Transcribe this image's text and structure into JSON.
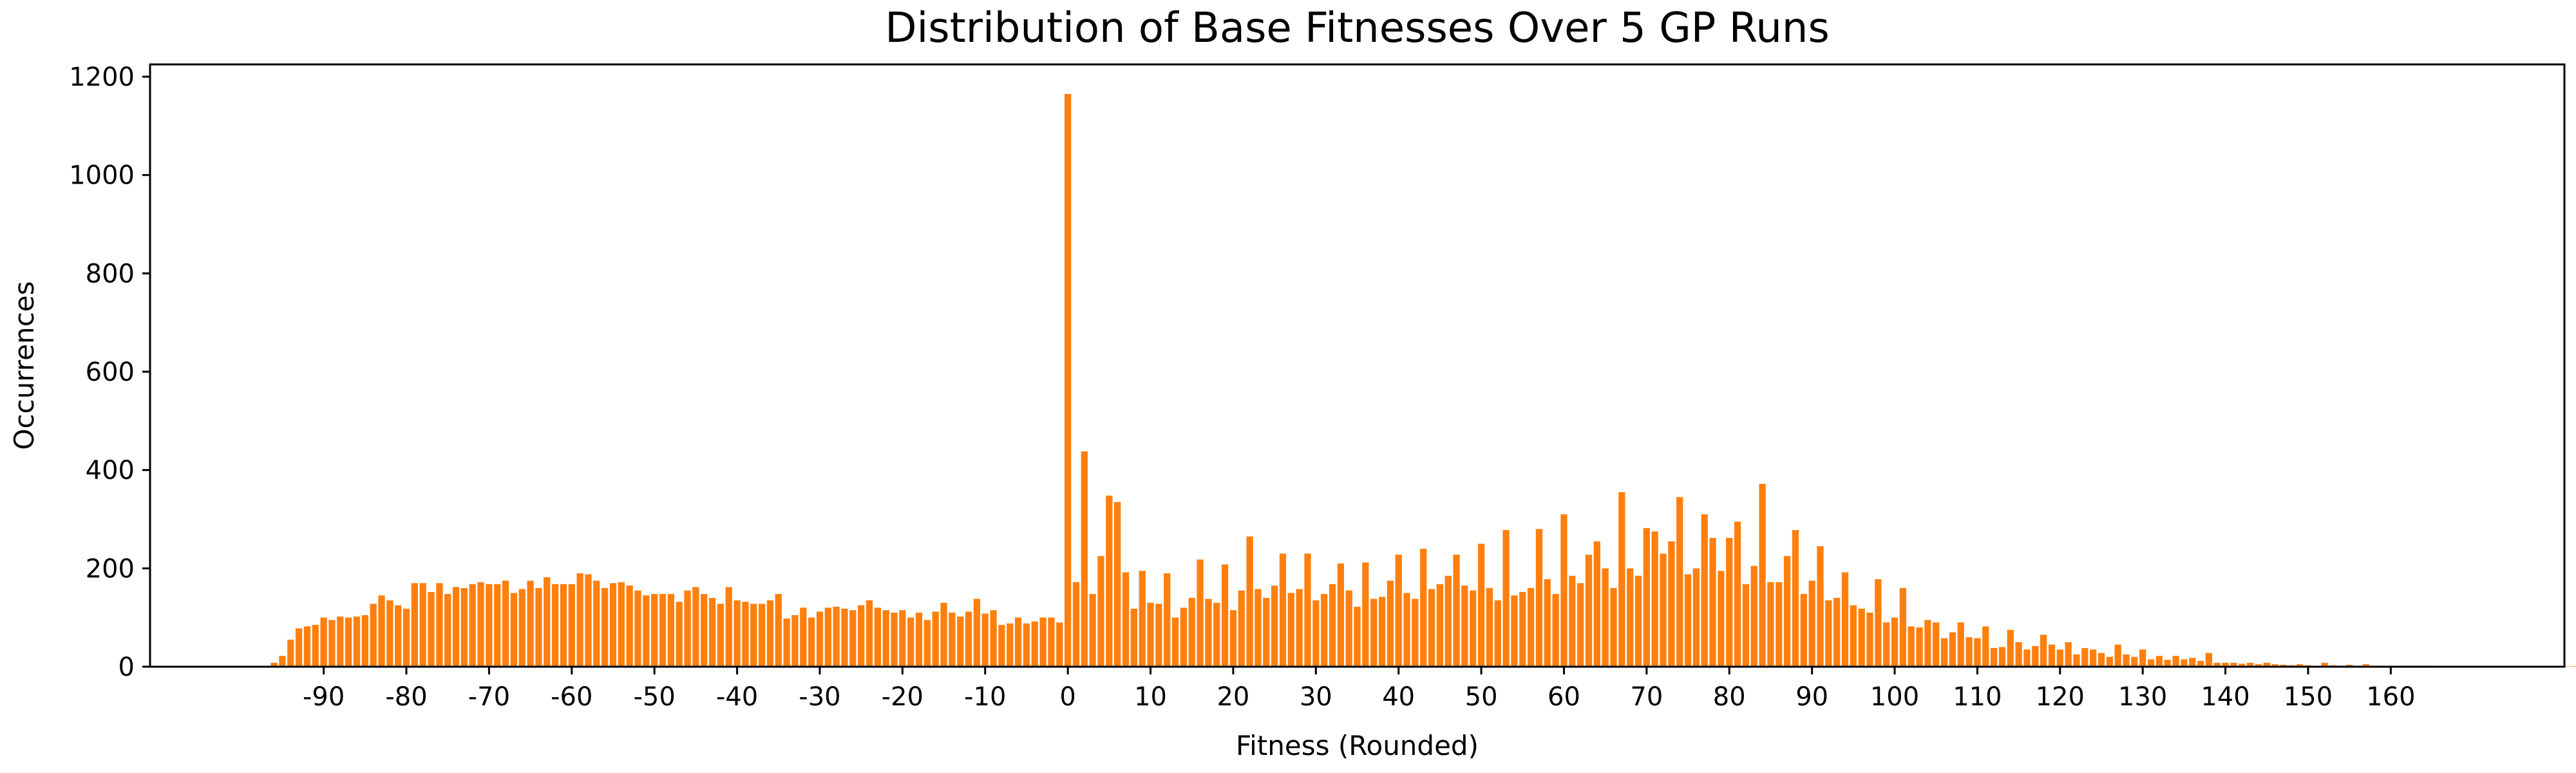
{
  "chart_data": {
    "type": "bar",
    "title": "Distribution of Base Fitnesses Over 5 GP Runs",
    "xlabel": "Fitness (Rounded)",
    "ylabel": "Occurrences",
    "color": "#ff7f0e",
    "grid": false,
    "legend": "none",
    "xlim": [
      -111,
      181
    ],
    "ylim": [
      0,
      1225
    ],
    "xticks": [
      -90,
      -80,
      -70,
      -60,
      -50,
      -40,
      -30,
      -20,
      -10,
      0,
      10,
      20,
      30,
      40,
      50,
      60,
      70,
      80,
      90,
      100,
      110,
      120,
      130,
      140,
      150,
      160
    ],
    "xtick_labels": [
      "-90",
      "-80",
      "-70",
      "-60",
      "-50",
      "-40",
      "-30",
      "-20",
      "-10",
      "0",
      "10",
      "20",
      "30",
      "40",
      "50",
      "60",
      "70",
      "80",
      "90",
      "100",
      "110",
      "120",
      "130",
      "140",
      "150",
      "160"
    ],
    "yticks": [
      0,
      200,
      400,
      600,
      800,
      1000,
      1200
    ],
    "ytick_labels": [
      "0",
      "200",
      "400",
      "600",
      "800",
      "1000",
      "1200"
    ],
    "x_start": -96,
    "values": [
      8,
      22,
      55,
      78,
      82,
      85,
      100,
      95,
      102,
      100,
      102,
      105,
      128,
      145,
      135,
      125,
      118,
      170,
      170,
      152,
      170,
      148,
      162,
      160,
      168,
      172,
      168,
      168,
      175,
      150,
      158,
      175,
      160,
      182,
      168,
      168,
      168,
      190,
      188,
      175,
      160,
      170,
      172,
      165,
      155,
      145,
      148,
      148,
      148,
      132,
      155,
      162,
      148,
      140,
      128,
      162,
      135,
      132,
      128,
      128,
      135,
      148,
      98,
      105,
      120,
      100,
      112,
      120,
      122,
      118,
      115,
      125,
      135,
      120,
      115,
      110,
      115,
      100,
      110,
      95,
      112,
      130,
      110,
      102,
      112,
      138,
      108,
      115,
      85,
      88,
      100,
      88,
      92,
      100,
      100,
      90,
      1165,
      172,
      438,
      148,
      225,
      348,
      335,
      192,
      118,
      195,
      130,
      128,
      190,
      100,
      120,
      140,
      218,
      138,
      130,
      208,
      115,
      155,
      265,
      158,
      140,
      165,
      230,
      150,
      158,
      230,
      135,
      148,
      168,
      210,
      155,
      122,
      212,
      138,
      142,
      175,
      228,
      150,
      138,
      240,
      158,
      168,
      185,
      228,
      165,
      155,
      250,
      160,
      135,
      278,
      145,
      152,
      160,
      280,
      178,
      148,
      310,
      185,
      170,
      228,
      255,
      200,
      160,
      355,
      200,
      185,
      282,
      275,
      230,
      255,
      345,
      188,
      200,
      310,
      262,
      195,
      262,
      295,
      168,
      205,
      372,
      172,
      172,
      225,
      278,
      148,
      175,
      245,
      135,
      140,
      192,
      125,
      118,
      110,
      178,
      90,
      100,
      160,
      82,
      80,
      95,
      90,
      58,
      70,
      90,
      60,
      58,
      82,
      38,
      40,
      75,
      50,
      35,
      42,
      65,
      45,
      35,
      50,
      25,
      38,
      35,
      28,
      20,
      45,
      25,
      20,
      35,
      15,
      22,
      14,
      22,
      15,
      18,
      12,
      28,
      8,
      8,
      8,
      6,
      8,
      5,
      8,
      5,
      4,
      3,
      5,
      3,
      2,
      8,
      3,
      2,
      4,
      2,
      5,
      2,
      2,
      2,
      2,
      2,
      2,
      2,
      2,
      1,
      1,
      1,
      1,
      1,
      1,
      1,
      1,
      1,
      1,
      1,
      1,
      1,
      1,
      1,
      1,
      1,
      1,
      1,
      1,
      1,
      1
    ]
  }
}
